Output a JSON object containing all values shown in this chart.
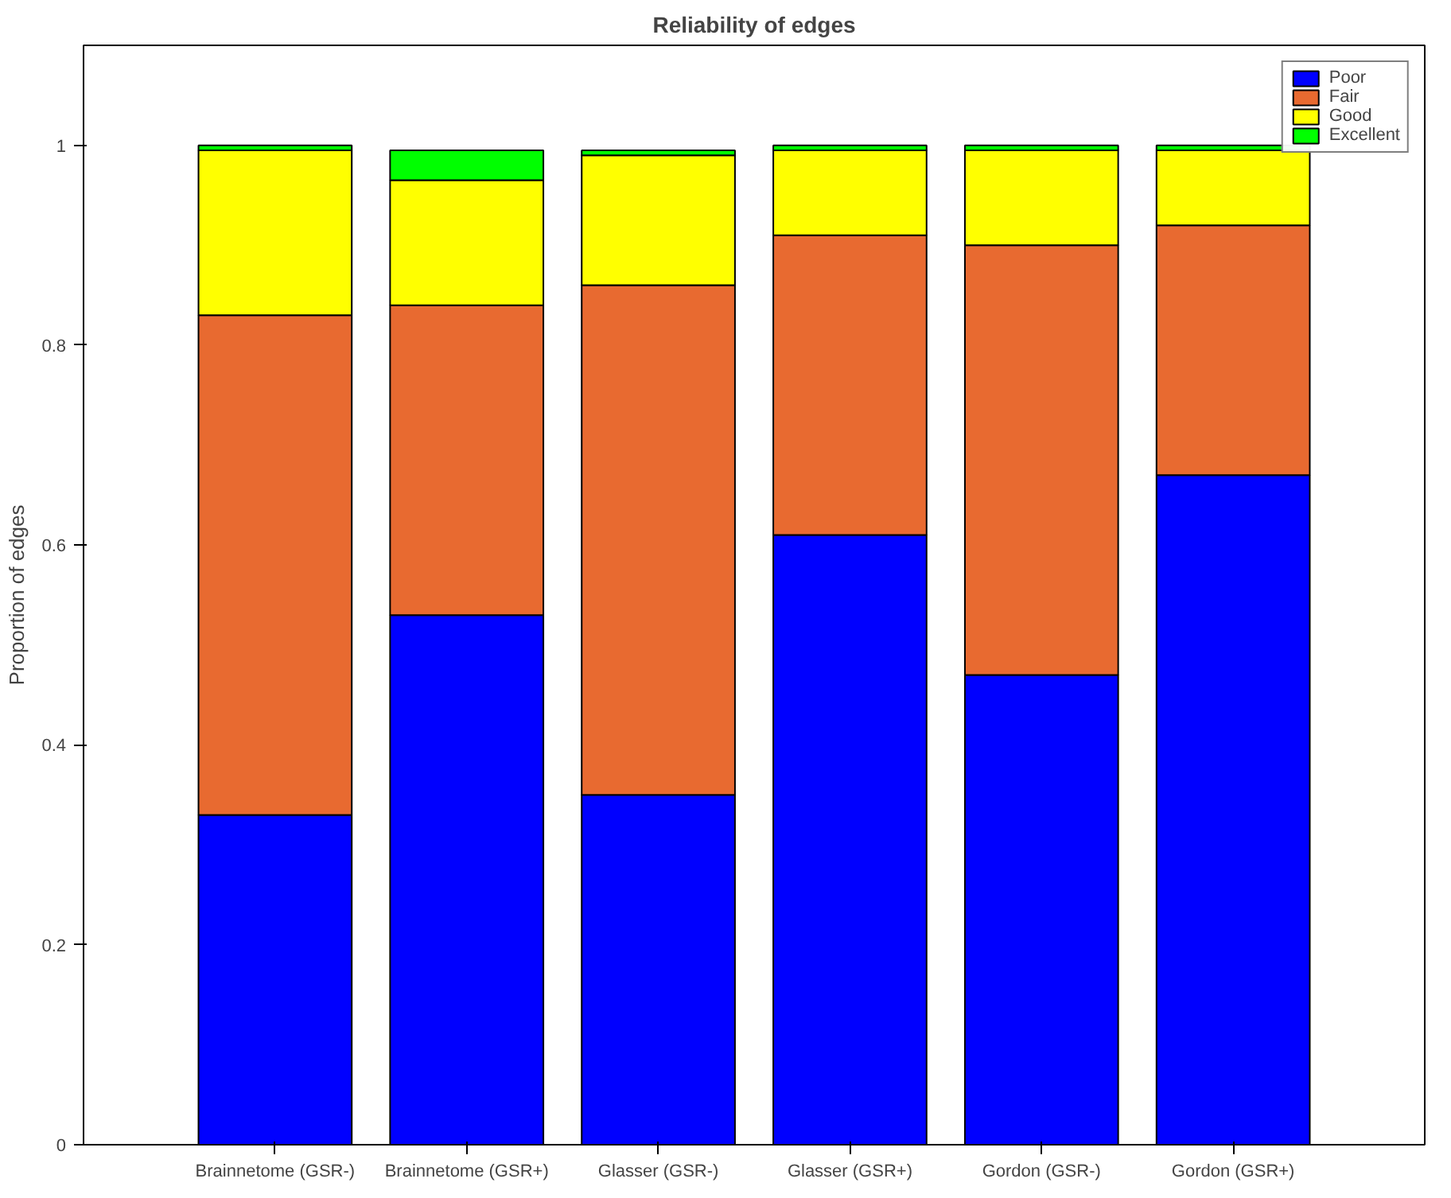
{
  "chart_data": {
    "type": "bar",
    "title": "Reliability of edges",
    "ylabel": "Proportion of edges",
    "categories": [
      "Brainnetome (GSR-)",
      "Brainnetome (GSR+)",
      "Glasser (GSR-)",
      "Glasser (GSR+)",
      "Gordon (GSR-)",
      "Gordon (GSR+)"
    ],
    "stacked": true,
    "series": [
      {
        "name": "Poor",
        "color": "#0000ff",
        "values": [
          0.33,
          0.53,
          0.35,
          0.61,
          0.47,
          0.67
        ]
      },
      {
        "name": "Fair",
        "color": "#e86a30",
        "values": [
          0.5,
          0.31,
          0.51,
          0.3,
          0.43,
          0.25
        ]
      },
      {
        "name": "Good",
        "color": "#ffff00",
        "values": [
          0.165,
          0.125,
          0.13,
          0.085,
          0.095,
          0.075
        ]
      },
      {
        "name": "Excellent",
        "color": "#00ff00",
        "values": [
          0.005,
          0.03,
          0.005,
          0.005,
          0.005,
          0.005
        ]
      }
    ],
    "ylim": [
      0,
      1.1
    ],
    "yticks": [
      0,
      0.2,
      0.4,
      0.6,
      0.8,
      1
    ],
    "grid": false,
    "legend": "top right"
  }
}
